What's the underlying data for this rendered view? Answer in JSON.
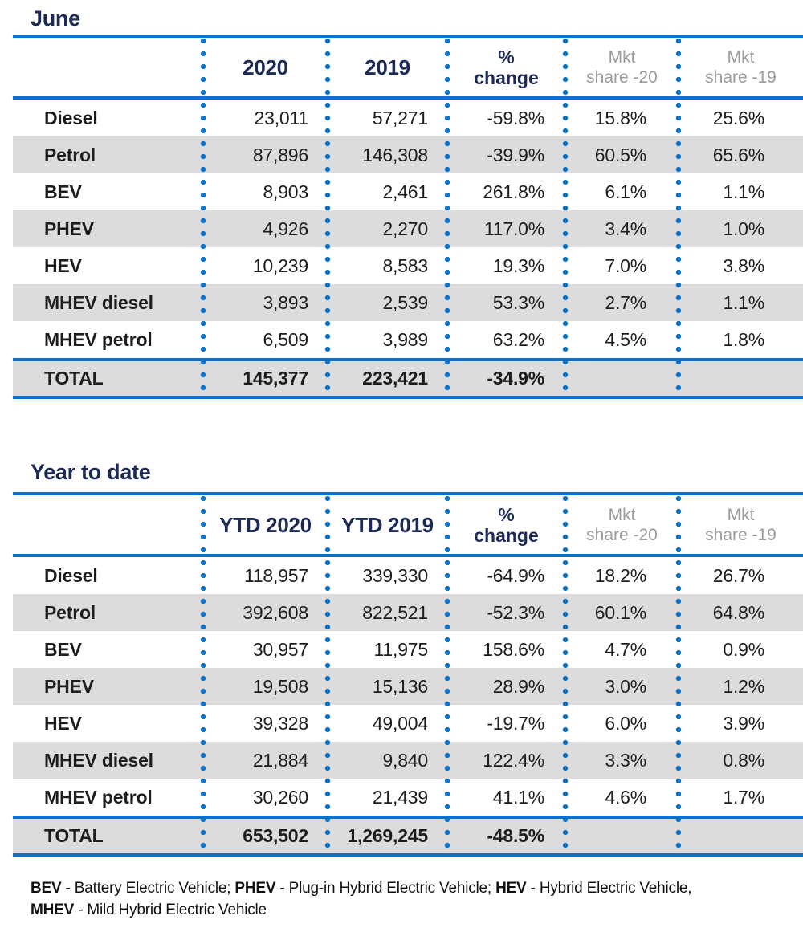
{
  "colors": {
    "blue": "#0e71c8",
    "navy": "#1b2a56",
    "gray-text": "#9b9b9b",
    "shade": "#dcdcdc",
    "ink": "#1d1d1b"
  },
  "june": {
    "hdr": [
      {
        "l1": "2020",
        "l2": ""
      },
      {
        "l1": "2019",
        "l2": ""
      },
      {
        "l1": "%",
        "l2": "change"
      },
      {
        "l1": "Mkt",
        "l2": "share -20"
      },
      {
        "l1": "Mkt",
        "l2": "share -19"
      }
    ]
  },
  "ytd": {
    "hdr": [
      {
        "l1": "YTD 2020",
        "l2": ""
      },
      {
        "l1": "YTD 2019",
        "l2": ""
      },
      {
        "l1": "%",
        "l2": "change"
      },
      {
        "l1": "Mkt",
        "l2": "share -20"
      },
      {
        "l1": "Mkt",
        "l2": "share -19"
      }
    ]
  },
  "footnote": {
    "seg1": "BEV",
    "seg2": " - Battery Electric Vehicle; ",
    "seg3": "PHEV",
    "seg4": " - Plug-in Hybrid Electric Vehicle; ",
    "seg5": "HEV",
    "seg6": " - Hybrid Electric Vehicle,",
    "seg7": "MHEV",
    "seg8": " - Mild Hybrid Electric Vehicle"
  },
  "chart_data": [
    {
      "type": "table",
      "title": "June",
      "columns": [
        "",
        "2020",
        "2019",
        "% change",
        "Mkt share -20",
        "Mkt share -19"
      ],
      "rows": [
        [
          "Diesel",
          "23,011",
          "57,271",
          "-59.8%",
          "15.8%",
          "25.6%"
        ],
        [
          "Petrol",
          "87,896",
          "146,308",
          "-39.9%",
          "60.5%",
          "65.6%"
        ],
        [
          "BEV",
          "8,903",
          "2,461",
          "261.8%",
          "6.1%",
          "1.1%"
        ],
        [
          "PHEV",
          "4,926",
          "2,270",
          "117.0%",
          "3.4%",
          "1.0%"
        ],
        [
          "HEV",
          "10,239",
          "8,583",
          "19.3%",
          "7.0%",
          "3.8%"
        ],
        [
          "MHEV diesel",
          "3,893",
          "2,539",
          "53.3%",
          "2.7%",
          "1.1%"
        ],
        [
          "MHEV petrol",
          "6,509",
          "3,989",
          "63.2%",
          "4.5%",
          "1.8%"
        ],
        [
          "TOTAL",
          "145,377",
          "223,421",
          "-34.9%",
          "",
          ""
        ]
      ]
    },
    {
      "type": "table",
      "title": "Year to date",
      "columns": [
        "",
        "YTD 2020",
        "YTD 2019",
        "% change",
        "Mkt share -20",
        "Mkt share -19"
      ],
      "rows": [
        [
          "Diesel",
          "118,957",
          "339,330",
          "-64.9%",
          "18.2%",
          "26.7%"
        ],
        [
          "Petrol",
          "392,608",
          "822,521",
          "-52.3%",
          "60.1%",
          "64.8%"
        ],
        [
          "BEV",
          "30,957",
          "11,975",
          "158.6%",
          "4.7%",
          "0.9%"
        ],
        [
          "PHEV",
          "19,508",
          "15,136",
          "28.9%",
          "3.0%",
          "1.2%"
        ],
        [
          "HEV",
          "39,328",
          "49,004",
          "-19.7%",
          "6.0%",
          "3.9%"
        ],
        [
          "MHEV diesel",
          "21,884",
          "9,840",
          "122.4%",
          "3.3%",
          "0.8%"
        ],
        [
          "MHEV petrol",
          "30,260",
          "21,439",
          "41.1%",
          "4.6%",
          "1.7%"
        ],
        [
          "TOTAL",
          "653,502",
          "1,269,245",
          "-48.5%",
          "",
          ""
        ]
      ]
    }
  ]
}
